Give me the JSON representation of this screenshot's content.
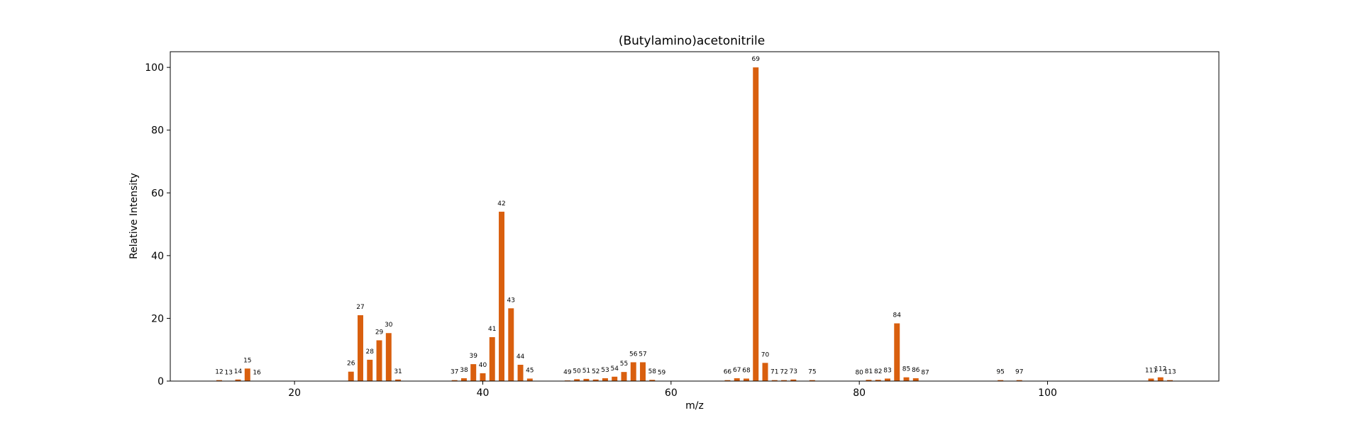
{
  "chart_data": {
    "type": "bar",
    "title": "(Butylamino)acetonitrile",
    "xlabel": "m/z",
    "ylabel": "Relative Intensity",
    "xlim": [
      6.8,
      118.2
    ],
    "ylim": [
      0,
      105
    ],
    "xticks": [
      20,
      40,
      60,
      80,
      100
    ],
    "yticks": [
      0,
      20,
      40,
      60,
      80,
      100
    ],
    "grid": false,
    "bar_color": "#d95f0e",
    "x": [
      12,
      13,
      14,
      15,
      16,
      26,
      27,
      28,
      29,
      30,
      31,
      37,
      38,
      39,
      40,
      41,
      42,
      43,
      44,
      45,
      49,
      50,
      51,
      52,
      53,
      54,
      55,
      56,
      57,
      58,
      59,
      66,
      67,
      68,
      69,
      70,
      71,
      72,
      73,
      75,
      80,
      81,
      82,
      83,
      84,
      85,
      86,
      87,
      95,
      97,
      111,
      112,
      113
    ],
    "values": [
      0.3,
      0.1,
      0.5,
      4.0,
      0.1,
      3.0,
      21.0,
      6.8,
      13.0,
      15.3,
      0.5,
      0.3,
      0.9,
      5.4,
      2.5,
      14.0,
      54.0,
      23.2,
      5.2,
      0.8,
      0.2,
      0.6,
      0.7,
      0.5,
      0.9,
      1.4,
      2.9,
      6.0,
      6.0,
      0.4,
      0.1,
      0.3,
      0.9,
      0.8,
      100.0,
      5.8,
      0.3,
      0.3,
      0.5,
      0.3,
      0.1,
      0.4,
      0.4,
      0.8,
      18.4,
      1.2,
      0.9,
      0.1,
      0.3,
      0.3,
      0.8,
      1.2,
      0.3
    ]
  }
}
